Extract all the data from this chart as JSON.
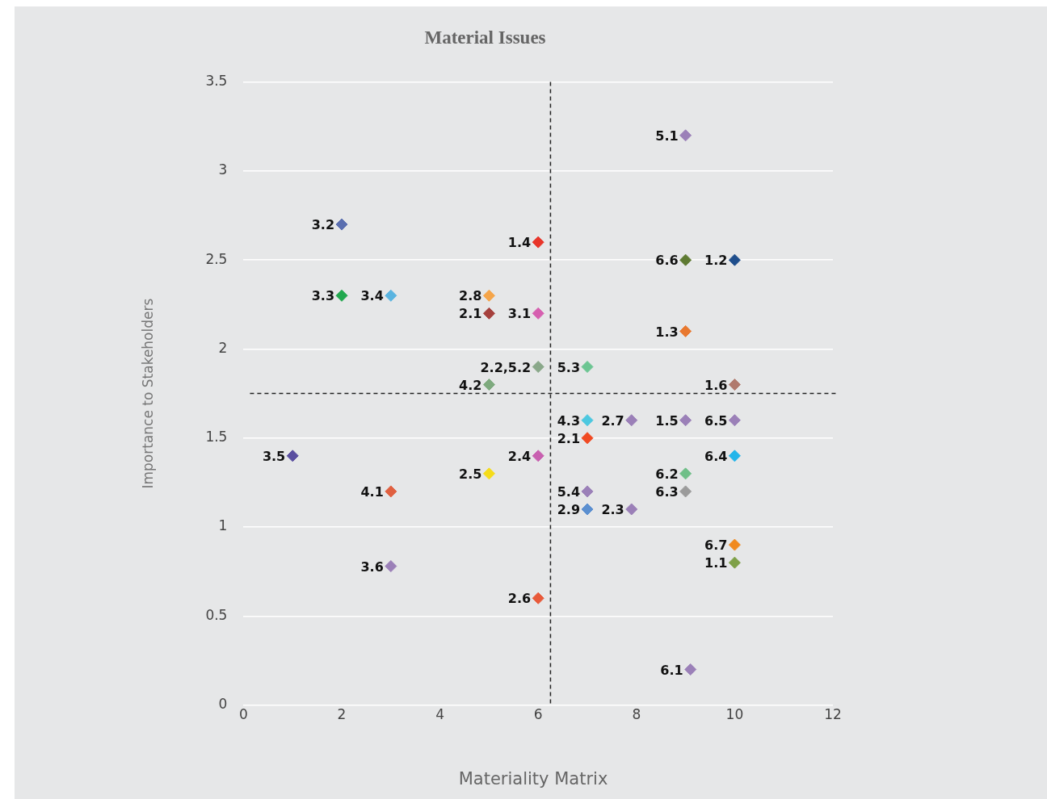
{
  "chart_data": {
    "type": "scatter",
    "title": "Material Issues",
    "ylabel": "Importance to Stakeholders",
    "annotations": [
      "Materiality Matrix"
    ],
    "xlim": [
      0,
      12
    ],
    "xticks": [
      0,
      2,
      4,
      6,
      8,
      10,
      12
    ],
    "ylim": [
      0,
      3.5
    ],
    "yticks": [
      0,
      0.5,
      1,
      1.5,
      2,
      2.5,
      3,
      3.5
    ],
    "grid": "y",
    "legend": false,
    "marker": "diamond",
    "ref_lines": [
      {
        "axis": "x",
        "value": 6.25,
        "color": "#222222",
        "line_style": "dashed"
      },
      {
        "axis": "y",
        "value": 1.75,
        "color": "#222222",
        "line_style": "dashed"
      }
    ],
    "series": [
      {
        "name": "5.1",
        "color": "#9b80b8",
        "x": [
          9
        ],
        "values": [
          3.2
        ]
      },
      {
        "name": "3.2",
        "color": "#5b6fb0",
        "x": [
          2
        ],
        "values": [
          2.7
        ]
      },
      {
        "name": "1.4",
        "color": "#e8352a",
        "x": [
          6
        ],
        "values": [
          2.6
        ]
      },
      {
        "name": "6.6",
        "color": "#5e7a32",
        "x": [
          9
        ],
        "values": [
          2.5
        ]
      },
      {
        "name": "1.2",
        "color": "#1f4e8c",
        "x": [
          10
        ],
        "values": [
          2.5
        ]
      },
      {
        "name": "3.3",
        "color": "#22a84f",
        "x": [
          2
        ],
        "values": [
          2.3
        ]
      },
      {
        "name": "3.4",
        "color": "#5ab4e0",
        "x": [
          3
        ],
        "values": [
          2.3
        ]
      },
      {
        "name": "2.8",
        "color": "#f5a54a",
        "x": [
          5
        ],
        "values": [
          2.3
        ]
      },
      {
        "name": "2.1",
        "color": "#a5403c",
        "x": [
          5
        ],
        "values": [
          2.2
        ]
      },
      {
        "name": "3.1",
        "color": "#d660b0",
        "x": [
          6
        ],
        "values": [
          2.2
        ]
      },
      {
        "name": "1.3",
        "color": "#e8782f",
        "x": [
          9
        ],
        "values": [
          2.1
        ]
      },
      {
        "name": "2.2,5.2",
        "color": "#8aa88a",
        "x": [
          6
        ],
        "values": [
          1.9
        ]
      },
      {
        "name": "5.3",
        "color": "#6cc592",
        "x": [
          7
        ],
        "values": [
          1.9
        ]
      },
      {
        "name": "4.2",
        "color": "#7eaa7e",
        "x": [
          5
        ],
        "values": [
          1.8
        ]
      },
      {
        "name": "1.6",
        "color": "#b07a6e",
        "x": [
          10
        ],
        "values": [
          1.8
        ]
      },
      {
        "name": "4.3",
        "color": "#4dc8e0",
        "x": [
          7
        ],
        "values": [
          1.6
        ]
      },
      {
        "name": "2.7",
        "color": "#9b80b8",
        "x": [
          7.9
        ],
        "values": [
          1.6
        ]
      },
      {
        "name": "1.5",
        "color": "#9b80b8",
        "x": [
          9
        ],
        "values": [
          1.6
        ]
      },
      {
        "name": "6.5",
        "color": "#9b80b8",
        "x": [
          10
        ],
        "values": [
          1.6
        ]
      },
      {
        "name": "2.1",
        "color": "#f04a23",
        "x": [
          7
        ],
        "values": [
          1.5
        ]
      },
      {
        "name": "3.5",
        "color": "#5a4fa0",
        "x": [
          1
        ],
        "values": [
          1.4
        ]
      },
      {
        "name": "2.4",
        "color": "#c860b0",
        "x": [
          6
        ],
        "values": [
          1.4
        ]
      },
      {
        "name": "6.4",
        "color": "#22b5ea",
        "x": [
          10
        ],
        "values": [
          1.4
        ]
      },
      {
        "name": "2.5",
        "color": "#f5dc1a",
        "x": [
          5
        ],
        "values": [
          1.3
        ]
      },
      {
        "name": "6.2",
        "color": "#6fbf88",
        "x": [
          9
        ],
        "values": [
          1.3
        ]
      },
      {
        "name": "4.1",
        "color": "#e06040",
        "x": [
          3
        ],
        "values": [
          1.2
        ]
      },
      {
        "name": "5.4",
        "color": "#9b80b8",
        "x": [
          7
        ],
        "values": [
          1.2
        ]
      },
      {
        "name": "6.3",
        "color": "#9b9b9b",
        "x": [
          9
        ],
        "values": [
          1.2
        ]
      },
      {
        "name": "2.9",
        "color": "#5b8fd0",
        "x": [
          7
        ],
        "values": [
          1.1
        ]
      },
      {
        "name": "2.3",
        "color": "#9b80b8",
        "x": [
          7.9
        ],
        "values": [
          1.1
        ]
      },
      {
        "name": "6.7",
        "color": "#f08a20",
        "x": [
          10
        ],
        "values": [
          0.9
        ]
      },
      {
        "name": "1.1",
        "color": "#7ea048",
        "x": [
          10
        ],
        "values": [
          0.8
        ]
      },
      {
        "name": "3.6",
        "color": "#9b80b8",
        "x": [
          3
        ],
        "values": [
          0.78
        ]
      },
      {
        "name": "2.6",
        "color": "#e85a3a",
        "x": [
          6
        ],
        "values": [
          0.6
        ]
      },
      {
        "name": "6.1",
        "color": "#9b80b8",
        "x": [
          9.1
        ],
        "values": [
          0.2
        ]
      }
    ]
  }
}
